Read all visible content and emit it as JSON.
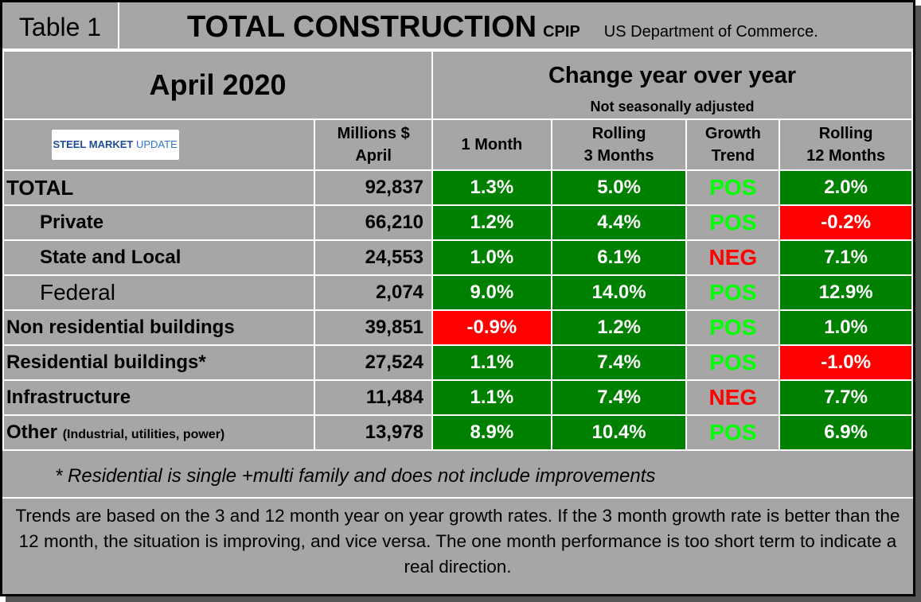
{
  "header": {
    "table_label": "Table 1",
    "title": "TOTAL CONSTRUCTION",
    "title_suffix": "CPIP",
    "source": "US Department of Commerce."
  },
  "period": "April 2020",
  "change_heading": "Change year over year",
  "change_note": "Not seasonally adjusted",
  "logo": [
    "STEEL",
    "MARKET",
    "UPDATE"
  ],
  "columns": [
    [
      "Millions $",
      "April"
    ],
    [
      "1 Month"
    ],
    [
      "Rolling",
      "3 Months"
    ],
    [
      "Growth",
      "Trend"
    ],
    [
      "Rolling",
      "12 Months"
    ]
  ],
  "rows": [
    {
      "label": "TOTAL",
      "amount": "92,837",
      "one_month": "1.3%",
      "rolling_3": "5.0%",
      "trend": "POS",
      "rolling_12": "2.0%"
    },
    {
      "label": "Private",
      "amount": "66,210",
      "one_month": "1.2%",
      "rolling_3": "4.4%",
      "trend": "POS",
      "rolling_12": "-0.2%"
    },
    {
      "label": "State and Local",
      "amount": "24,553",
      "one_month": "1.0%",
      "rolling_3": "6.1%",
      "trend": "NEG",
      "rolling_12": "7.1%"
    },
    {
      "label": "Federal",
      "amount": "2,074",
      "one_month": "9.0%",
      "rolling_3": "14.0%",
      "trend": "POS",
      "rolling_12": "12.9%"
    },
    {
      "label": "Non residential buildings",
      "amount": "39,851",
      "one_month": "-0.9%",
      "rolling_3": "1.2%",
      "trend": "POS",
      "rolling_12": "1.0%"
    },
    {
      "label": "Residential buildings*",
      "amount": "27,524",
      "one_month": "1.1%",
      "rolling_3": "7.4%",
      "trend": "POS",
      "rolling_12": "-1.0%"
    },
    {
      "label": "Infrastructure",
      "amount": "11,484",
      "one_month": "1.1%",
      "rolling_3": "7.4%",
      "trend": "NEG",
      "rolling_12": "7.7%"
    },
    {
      "label": "Other",
      "label_note": "(Industrial, utilities, power)",
      "amount": "13,978",
      "one_month": "8.9%",
      "rolling_3": "10.4%",
      "trend": "POS",
      "rolling_12": "6.9%"
    }
  ],
  "footnote": "* Residential is single +multi family and does not include improvements",
  "explanation": "Trends are based on the 3 and 12 month year on year growth rates. If the 3 month growth rate is better than the 12 month, the situation is improving, and vice versa. The one month performance is too short term to indicate a real direction."
}
